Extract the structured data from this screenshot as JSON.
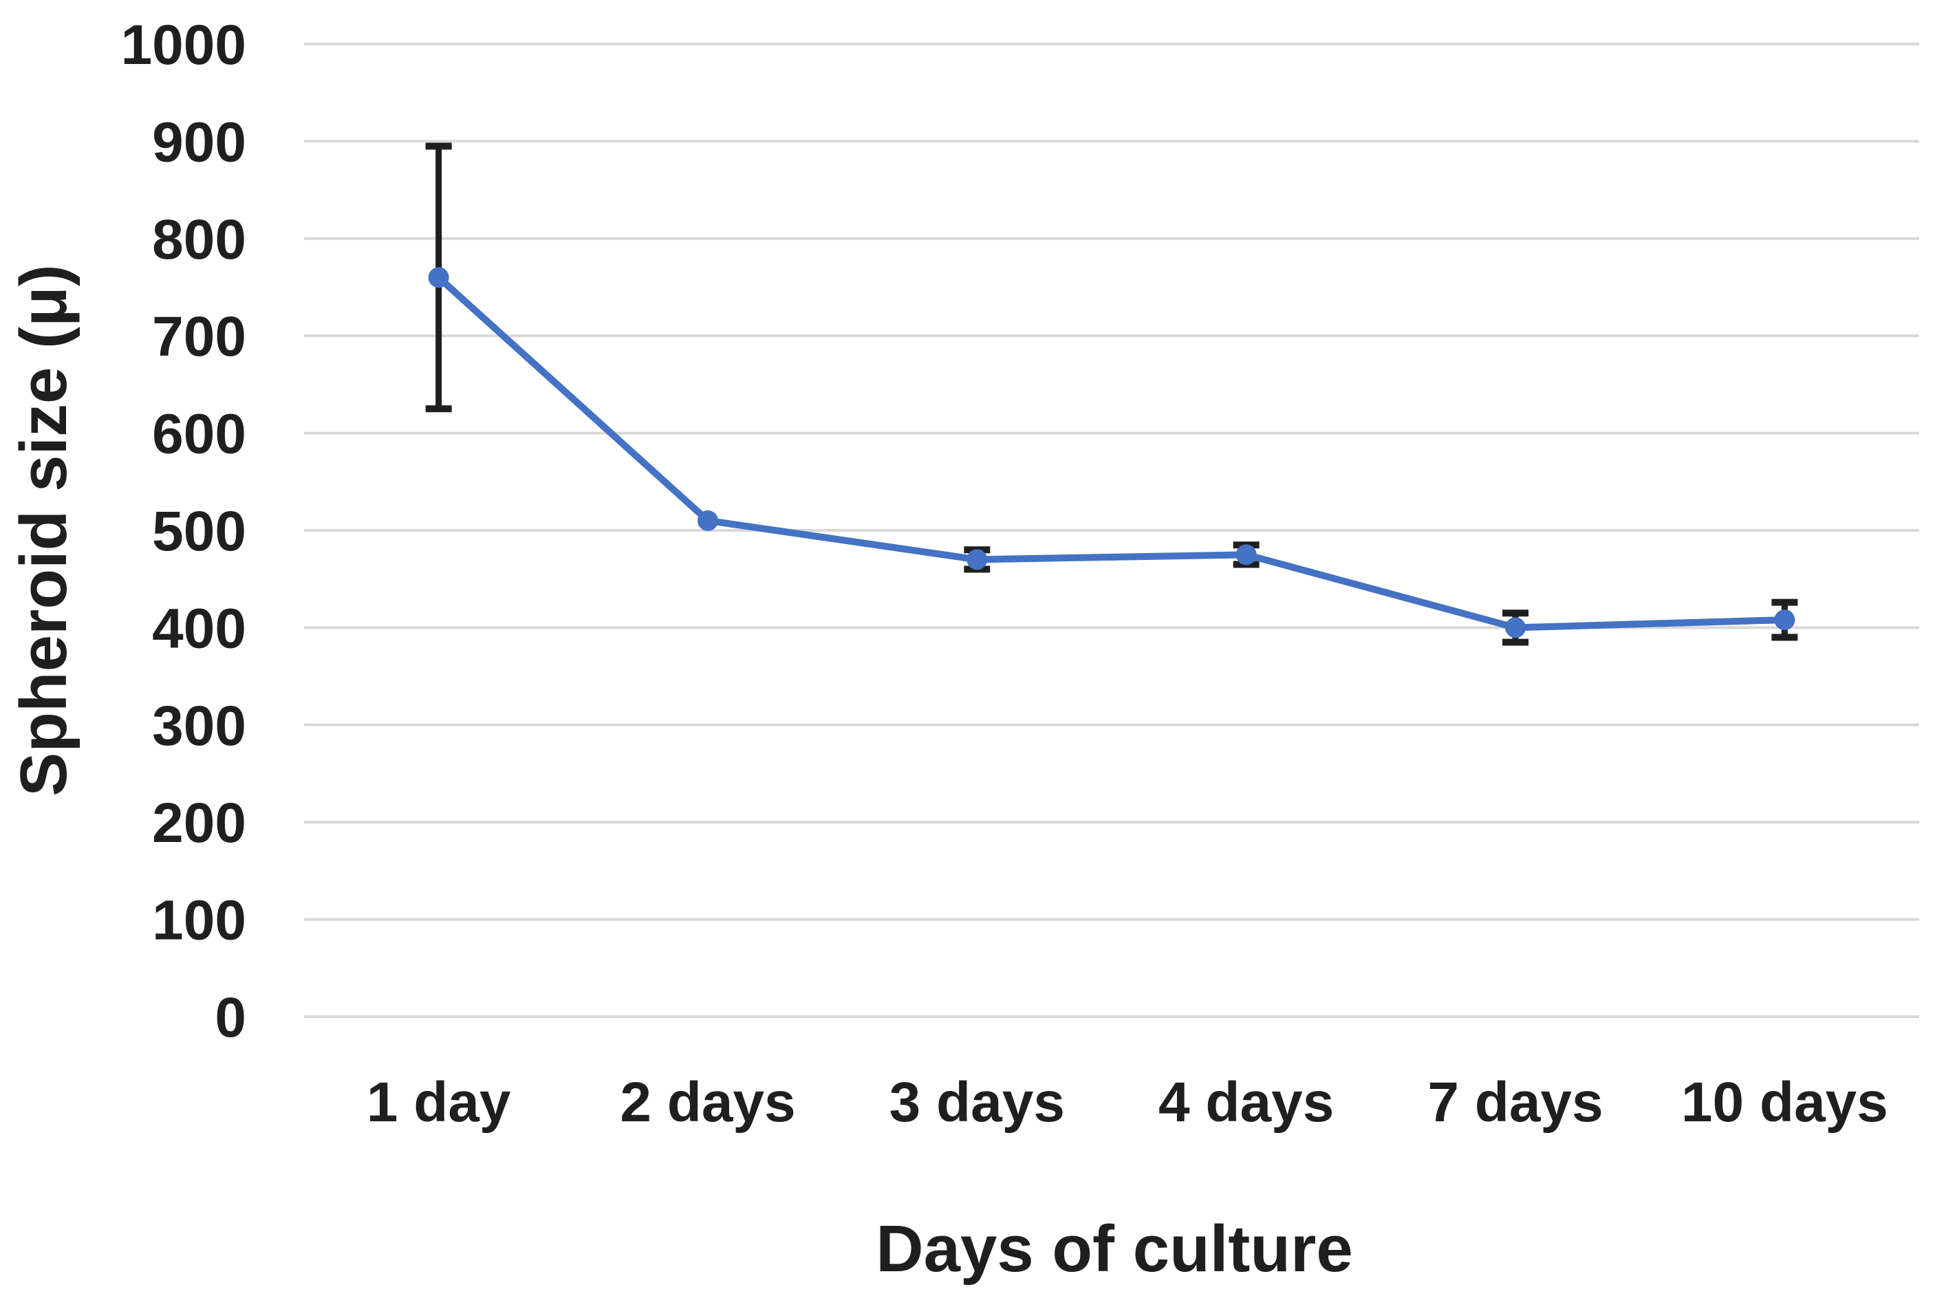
{
  "chart_data": {
    "type": "line",
    "title": "",
    "xlabel": "Days of culture",
    "ylabel": "Spheroid size (μ)",
    "categories": [
      "1 day",
      "2 days",
      "3 days",
      "4 days",
      "7 days",
      "10 days"
    ],
    "series": [
      {
        "name": "Spheroid size (μ)",
        "values": [
          760,
          510,
          470,
          475,
          400,
          408
        ],
        "error_plus": [
          135,
          0,
          10,
          10,
          15,
          18
        ],
        "error_minus": [
          135,
          0,
          10,
          10,
          15,
          18
        ],
        "marker": "circle"
      }
    ],
    "ylim": [
      0,
      1000
    ],
    "yticks": [
      "0",
      "100",
      "200",
      "300",
      "400",
      "500",
      "600",
      "700",
      "800",
      "900",
      "1000"
    ],
    "grid": "horizontal-only",
    "legend_position": "none",
    "colors": {
      "line": "#4472c4",
      "marker": "#4472c4",
      "error_bar": "#1f1f1f",
      "gridline": "#d9d9d9",
      "text": "#1f1f1f",
      "background": "#ffffff"
    }
  }
}
